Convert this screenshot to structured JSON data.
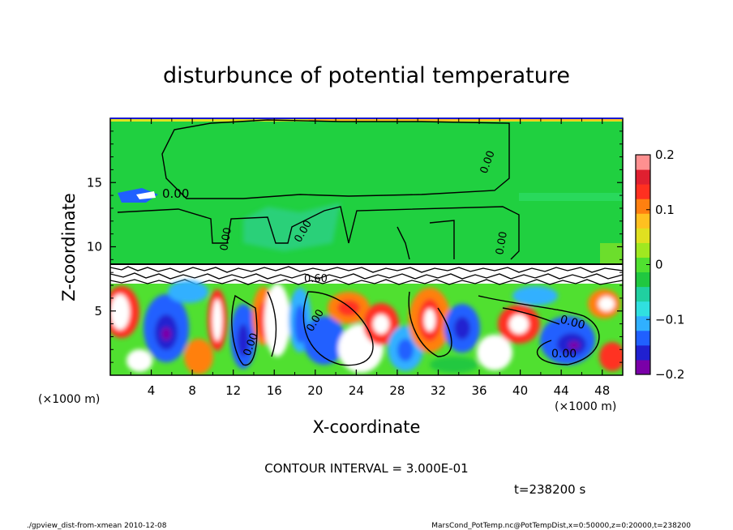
{
  "chart_data": {
    "type": "heatmap",
    "title": "disturbunce of potential temperature",
    "xlabel": "X-coordinate",
    "ylabel": "Z-coordinate",
    "x_unit": "(×1000 m)",
    "y_unit": "(×1000 m)",
    "xlim": [
      0,
      50
    ],
    "ylim": [
      0,
      20
    ],
    "x_ticks": [
      "4",
      "8",
      "12",
      "16",
      "20",
      "24",
      "28",
      "32",
      "36",
      "40",
      "44",
      "48"
    ],
    "y_ticks": [
      "5",
      "10",
      "15"
    ],
    "colorbar": {
      "range": [
        -0.2,
        0.2
      ],
      "ticks": [
        "0.2",
        "0.1",
        "0",
        "−0.1",
        "−0.2"
      ],
      "colors": [
        "#7a00a8",
        "#2020d0",
        "#2060ff",
        "#30b0ff",
        "#30e0e0",
        "#20d0a0",
        "#20c840",
        "#50e030",
        "#a0e820",
        "#e0e020",
        "#ffc020",
        "#ff8010",
        "#ff3020",
        "#e02030",
        "#ff9090"
      ]
    },
    "contour_labels": [
      "0.00",
      "0.00",
      "0.00",
      "0.00",
      "0.00",
      "0.00",
      "0.00",
      "0.00",
      "0.00",
      "0.60"
    ],
    "contour_interval_text": "CONTOUR INTERVAL = 3.000E-01",
    "time_text": "t=238200 s",
    "footer_left": "./gpview_dist-from-xmean  2010-12-08",
    "footer_right": "MarsCond_PotTemp.nc@PotTempDist,x=0:50000,z=0:20000,t=238200"
  }
}
